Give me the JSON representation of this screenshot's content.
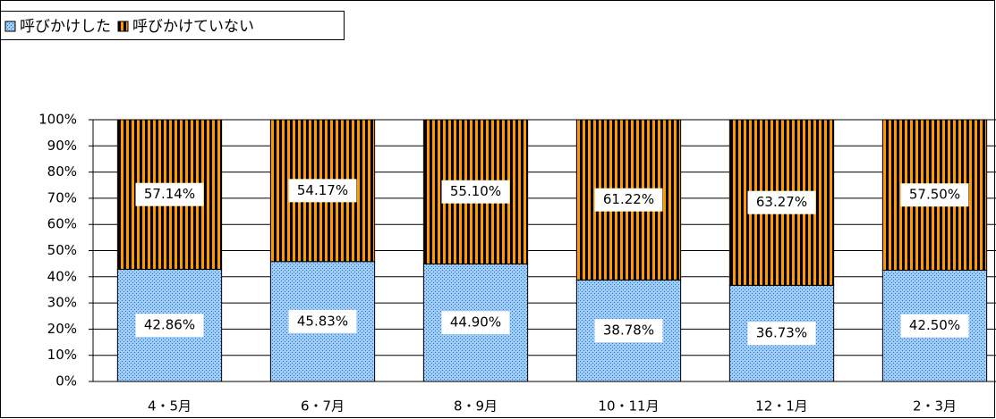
{
  "chart_data": {
    "type": "stacked_bar",
    "categories": [
      "4・5月",
      "6・7月",
      "8・9月",
      "10・11月",
      "12・1月",
      "2・3月"
    ],
    "series": [
      {
        "name": "呼びかけした",
        "color": "#99ccff",
        "values": [
          42.86,
          45.83,
          44.9,
          38.78,
          36.73,
          42.5
        ],
        "value_labels": [
          "42.86%",
          "45.83%",
          "44.90%",
          "38.78%",
          "36.73%",
          "42.50%"
        ]
      },
      {
        "name": "呼びかけていない",
        "color": "#ff9900",
        "values": [
          57.14,
          54.17,
          55.1,
          61.22,
          63.27,
          57.5
        ],
        "value_labels": [
          "57.14%",
          "54.17%",
          "55.10%",
          "61.22%",
          "63.27%",
          "57.50%"
        ]
      }
    ],
    "ylim": [
      0,
      100
    ],
    "yticks": [
      {
        "value": 0,
        "label": "0%"
      },
      {
        "value": 10,
        "label": "10%"
      },
      {
        "value": 20,
        "label": "20%"
      },
      {
        "value": 30,
        "label": "30%"
      },
      {
        "value": 40,
        "label": "40%"
      },
      {
        "value": 50,
        "label": "50%"
      },
      {
        "value": 60,
        "label": "60%"
      },
      {
        "value": 70,
        "label": "70%"
      },
      {
        "value": 80,
        "label": "80%"
      },
      {
        "value": 90,
        "label": "90%"
      },
      {
        "value": 100,
        "label": "100%"
      }
    ],
    "grid": true,
    "legend": "top-left"
  }
}
